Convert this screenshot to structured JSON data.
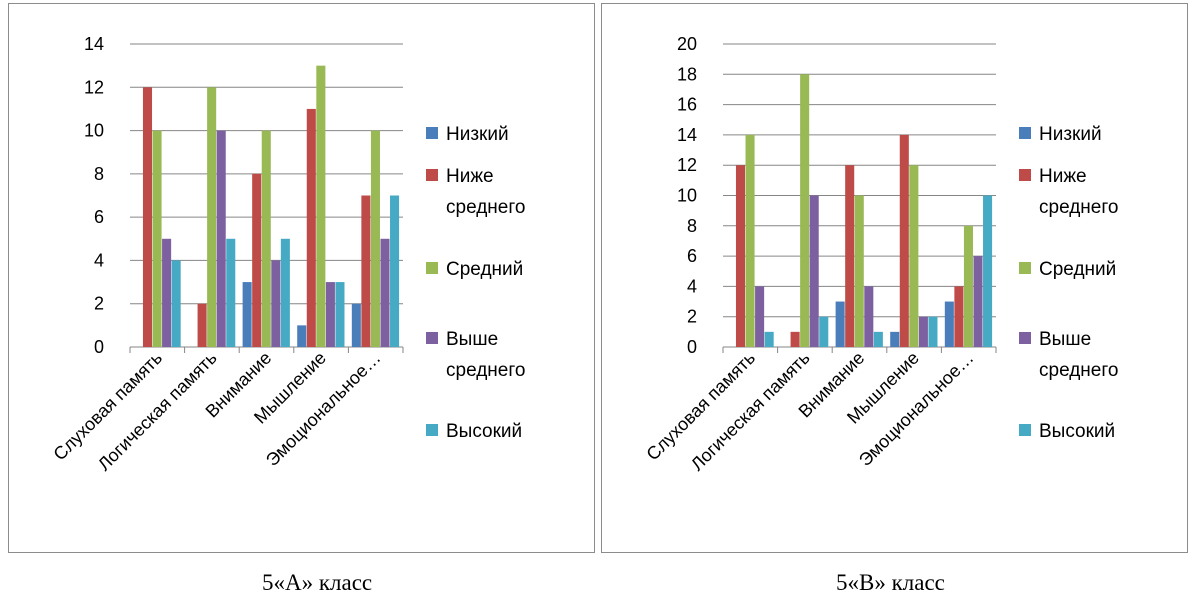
{
  "colors": {
    "series": [
      "#4a7ebb",
      "#be4b48",
      "#98b954",
      "#7d60a0",
      "#46aac5"
    ],
    "grid": "#868686",
    "border": "#8c8c8c"
  },
  "chart_data": [
    {
      "type": "bar",
      "categories": [
        "Слуховая память",
        "Логическая память",
        "Внимание",
        "Мышление",
        "Эмоциональное…"
      ],
      "series": [
        {
          "name": "Низкий",
          "values": [
            0,
            0,
            3,
            1,
            2
          ]
        },
        {
          "name": "Ниже среднего",
          "values": [
            12,
            2,
            8,
            11,
            7
          ]
        },
        {
          "name": "Средний",
          "values": [
            10,
            12,
            10,
            13,
            10
          ]
        },
        {
          "name": "Выше среднего",
          "values": [
            5,
            10,
            4,
            3,
            5
          ]
        },
        {
          "name": "Высокий",
          "values": [
            4,
            5,
            5,
            3,
            7
          ]
        }
      ],
      "ylim": [
        0,
        14
      ],
      "ytick_step": 2,
      "grid": true,
      "legend": "right",
      "caption": "5«А» класс"
    },
    {
      "type": "bar",
      "categories": [
        "Слуховая память",
        "Логическая память",
        "Внимание",
        "Мышление",
        "Эмоциональное…"
      ],
      "series": [
        {
          "name": "Низкий",
          "values": [
            0,
            0,
            3,
            1,
            3
          ]
        },
        {
          "name": "Ниже среднего",
          "values": [
            12,
            1,
            12,
            14,
            4
          ]
        },
        {
          "name": "Средний",
          "values": [
            14,
            18,
            10,
            12,
            8
          ]
        },
        {
          "name": "Выше среднего",
          "values": [
            4,
            10,
            4,
            2,
            6
          ]
        },
        {
          "name": "Высокий",
          "values": [
            1,
            2,
            1,
            2,
            10
          ]
        }
      ],
      "ylim": [
        0,
        20
      ],
      "ytick_step": 2,
      "grid": true,
      "legend": "right",
      "caption": "5«В» класс"
    }
  ]
}
